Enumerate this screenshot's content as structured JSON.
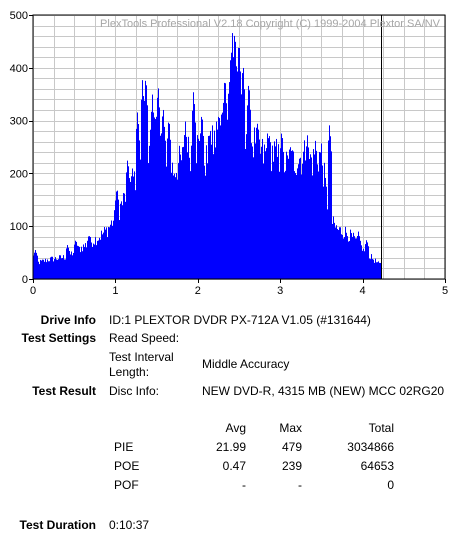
{
  "chart_data": {
    "type": "bar",
    "title": "",
    "watermark": "PlexTools Professional V2.18 Copyright (C) 1999-2004 Plextor SA/NV",
    "xlabel": "",
    "ylabel": "",
    "xlim": [
      0,
      5
    ],
    "ylim": [
      0,
      500
    ],
    "x_ticks": [
      "0",
      "1",
      "2",
      "3",
      "4",
      "5"
    ],
    "y_ticks": [
      "0",
      "100",
      "200",
      "300",
      "400",
      "500"
    ],
    "grid": true,
    "bar_color": "#0000ff",
    "marker_color": "#000000",
    "marker_x": 4.22,
    "x_end": 4.22,
    "profile_x": [
      0,
      0.1,
      0.2,
      0.3,
      0.4,
      0.5,
      0.6,
      0.7,
      0.8,
      0.9,
      1.0,
      1.1,
      1.2,
      1.3,
      1.4,
      1.5,
      1.6,
      1.7,
      1.8,
      1.9,
      2.0,
      2.1,
      2.2,
      2.3,
      2.4,
      2.5,
      2.6,
      2.7,
      2.8,
      2.9,
      3.0,
      3.1,
      3.2,
      3.3,
      3.4,
      3.5,
      3.6,
      3.7,
      3.8,
      3.9,
      4.0,
      4.1,
      4.2
    ],
    "profile_y": [
      30,
      35,
      40,
      42,
      45,
      55,
      65,
      75,
      85,
      100,
      125,
      160,
      200,
      220,
      250,
      280,
      270,
      220,
      240,
      260,
      270,
      240,
      280,
      320,
      400,
      350,
      300,
      270,
      250,
      260,
      240,
      230,
      245,
      250,
      240,
      255,
      120,
      100,
      95,
      80,
      60,
      45,
      30
    ],
    "spikes": [
      [
        0.03,
        55
      ],
      [
        0.42,
        65
      ],
      [
        0.52,
        75
      ],
      [
        0.68,
        85
      ],
      [
        1.02,
        175
      ],
      [
        1.15,
        230
      ],
      [
        1.27,
        320
      ],
      [
        1.33,
        380
      ],
      [
        1.37,
        390
      ],
      [
        1.45,
        350
      ],
      [
        1.48,
        320
      ],
      [
        1.52,
        370
      ],
      [
        1.58,
        330
      ],
      [
        1.65,
        310
      ],
      [
        1.85,
        300
      ],
      [
        1.95,
        360
      ],
      [
        2.05,
        320
      ],
      [
        2.15,
        290
      ],
      [
        2.25,
        310
      ],
      [
        2.33,
        390
      ],
      [
        2.4,
        425
      ],
      [
        2.42,
        470
      ],
      [
        2.45,
        478
      ],
      [
        2.5,
        460
      ],
      [
        2.55,
        415
      ],
      [
        2.62,
        380
      ],
      [
        2.72,
        305
      ],
      [
        2.85,
        285
      ],
      [
        3.02,
        285
      ],
      [
        3.12,
        260
      ],
      [
        3.33,
        275
      ],
      [
        3.43,
        265
      ],
      [
        3.6,
        295
      ],
      [
        3.95,
        90
      ],
      [
        4.05,
        75
      ]
    ]
  },
  "drive_info": {
    "label": "Drive Info",
    "value": "ID:1 PLEXTOR DVDR PX-712A V1.05 (#131644)"
  },
  "test_settings": {
    "label": "Test Settings",
    "read_speed_label": "Read Speed:",
    "read_speed_value": "",
    "interval_label_1": "Test Interval",
    "interval_label_2": "Length:",
    "interval_value": "Middle Accuracy"
  },
  "test_result": {
    "label": "Test Result",
    "disc_info_label": "Disc Info:",
    "disc_info_value": "NEW DVD-R, 4315 MB (NEW) MCC 02RG20",
    "headers": [
      "Avg",
      "Max",
      "Total"
    ],
    "rows": [
      {
        "name": "PIE",
        "avg": "21.99",
        "max": "479",
        "total": "3034866"
      },
      {
        "name": "POE",
        "avg": "0.47",
        "max": "239",
        "total": "64653"
      },
      {
        "name": "POF",
        "avg": "-",
        "max": "-",
        "total": "0"
      }
    ]
  },
  "test_duration": {
    "label": "Test Duration",
    "value": "0:10:37"
  }
}
